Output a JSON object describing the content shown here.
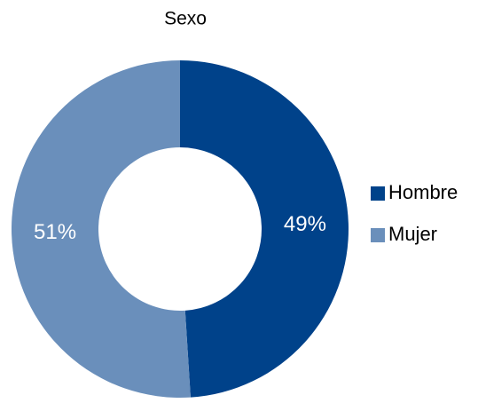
{
  "chart_data": {
    "type": "donut",
    "title": "Sexo",
    "categories": [
      "Hombre",
      "Mujer"
    ],
    "values": [
      49,
      51
    ],
    "value_labels": [
      "49%",
      "51%"
    ],
    "colors": [
      "#00428a",
      "#6a8fbb"
    ],
    "legend": "right"
  }
}
